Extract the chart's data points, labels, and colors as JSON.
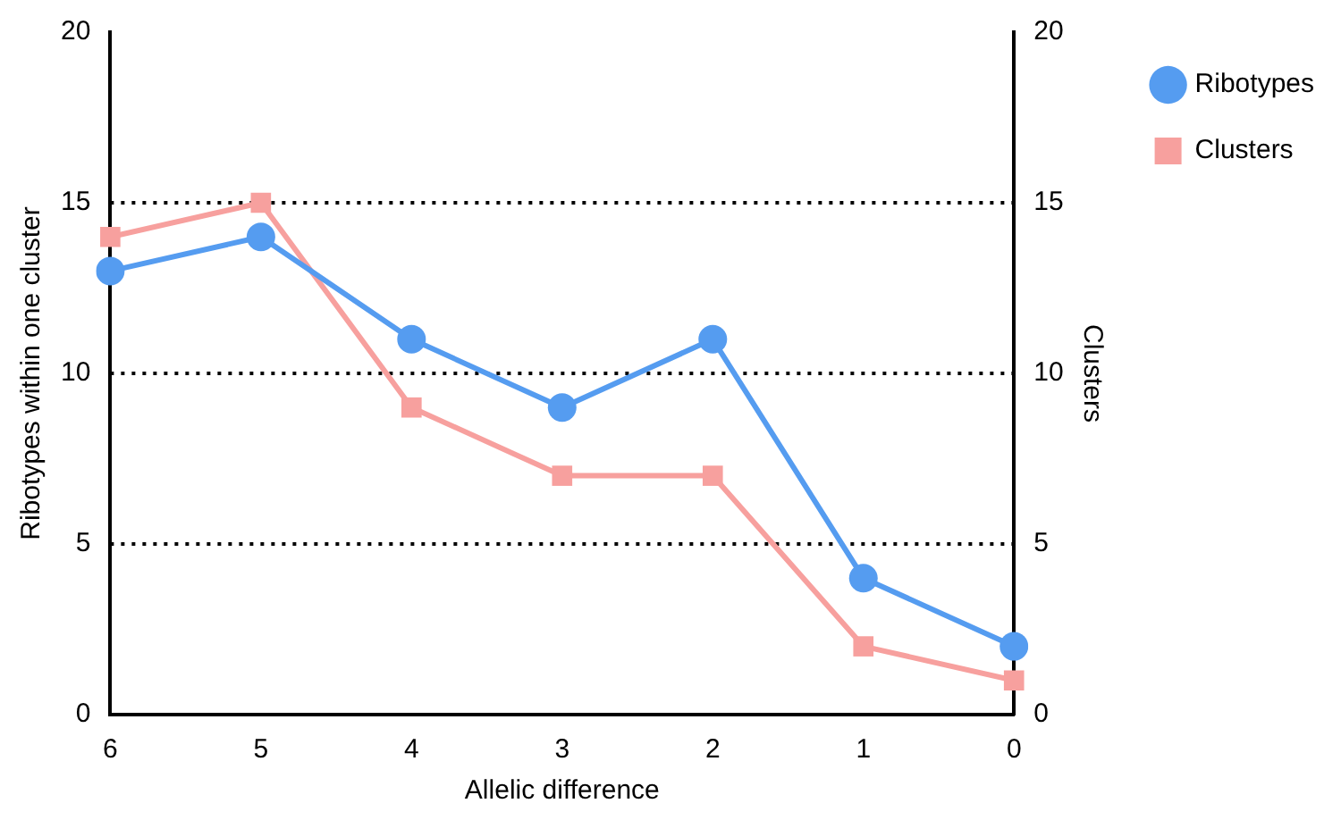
{
  "chart_data": {
    "type": "line",
    "xlabel": "Allelic difference",
    "ylabel": "Ribotypes within one cluster",
    "y2label": "Clusters",
    "categories": [
      "6",
      "5",
      "4",
      "3",
      "2",
      "1",
      "0"
    ],
    "series": [
      {
        "name": "Ribotypes",
        "color": "#559cf0",
        "marker": "circle",
        "values": [
          13,
          14,
          11,
          9,
          11,
          4,
          2
        ]
      },
      {
        "name": "Clusters",
        "color": "#f7a09e",
        "marker": "square",
        "axis": "y2",
        "values": [
          14,
          15,
          9,
          7,
          7,
          2,
          1
        ]
      }
    ],
    "ylim": [
      0,
      20
    ],
    "yticks": [
      0,
      5,
      10,
      15,
      20
    ],
    "y2lim": [
      0,
      20
    ],
    "y2ticks": [
      0,
      5,
      10,
      15,
      20
    ],
    "grid": "y",
    "legend": "top right",
    "line_style": "solid"
  }
}
